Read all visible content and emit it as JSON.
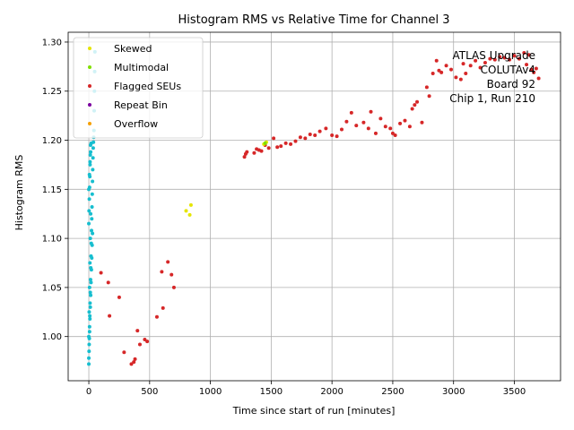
{
  "chart_data": {
    "type": "scatter",
    "title": "Histogram RMS vs Relative Time for Channel 3",
    "xlabel": "Time since start of run [minutes]",
    "ylabel": "Histogram RMS",
    "xlim": [
      -170,
      3880
    ],
    "ylim": [
      0.955,
      1.31
    ],
    "xticks": [
      0,
      500,
      1000,
      1500,
      2000,
      2500,
      3000,
      3500
    ],
    "yticks": [
      1.0,
      1.05,
      1.1,
      1.15,
      1.2,
      1.25,
      1.3
    ],
    "grid": true,
    "legend_position": "top-left",
    "annotation_lines": [
      "ATLAS Upgrade",
      "COLUTAv4",
      "Board 92",
      "Chip 1, Run 210"
    ],
    "annotation_position": "top-right",
    "series": [
      {
        "name": "Skewed",
        "color": "#e5e500",
        "x": [
          1440,
          1460,
          800,
          830,
          840
        ],
        "y": [
          1.196,
          1.198,
          1.128,
          1.124,
          1.134
        ]
      },
      {
        "name": "Multimodal",
        "color": "#80e000",
        "x": [
          1450
        ],
        "y": [
          1.197
        ]
      },
      {
        "name": "Flagged SEUs",
        "color": "#d62728",
        "x": [
          100,
          160,
          170,
          250,
          290,
          350,
          370,
          380,
          400,
          420,
          460,
          480,
          560,
          600,
          610,
          650,
          680,
          700,
          1280,
          1290,
          1300,
          1360,
          1380,
          1400,
          1420,
          1450,
          1480,
          1520,
          1550,
          1580,
          1620,
          1660,
          1700,
          1740,
          1780,
          1820,
          1860,
          1900,
          1950,
          2000,
          2040,
          2080,
          2120,
          2160,
          2200,
          2260,
          2300,
          2320,
          2360,
          2400,
          2440,
          2480,
          2500,
          2520,
          2560,
          2600,
          2640,
          2660,
          2680,
          2700,
          2740,
          2780,
          2800,
          2830,
          2860,
          2880,
          2900,
          2940,
          2980,
          3020,
          3060,
          3080,
          3100,
          3140,
          3180,
          3220,
          3260,
          3300,
          3340,
          3380,
          3420,
          3460,
          3500,
          3540,
          3580,
          3600,
          3620,
          3640,
          3660,
          3680,
          3700
        ],
        "y": [
          1.065,
          1.055,
          1.021,
          1.04,
          0.984,
          0.972,
          0.974,
          0.977,
          1.006,
          0.992,
          0.997,
          0.995,
          1.02,
          1.066,
          1.029,
          1.076,
          1.063,
          1.05,
          1.183,
          1.186,
          1.188,
          1.187,
          1.191,
          1.19,
          1.189,
          1.195,
          1.192,
          1.202,
          1.193,
          1.194,
          1.197,
          1.196,
          1.199,
          1.203,
          1.202,
          1.206,
          1.205,
          1.209,
          1.212,
          1.205,
          1.204,
          1.211,
          1.219,
          1.228,
          1.215,
          1.218,
          1.212,
          1.229,
          1.207,
          1.222,
          1.214,
          1.212,
          1.207,
          1.205,
          1.217,
          1.22,
          1.214,
          1.232,
          1.236,
          1.239,
          1.218,
          1.254,
          1.245,
          1.268,
          1.281,
          1.271,
          1.269,
          1.276,
          1.272,
          1.264,
          1.262,
          1.278,
          1.268,
          1.276,
          1.281,
          1.274,
          1.279,
          1.283,
          1.282,
          1.285,
          1.284,
          1.282,
          1.286,
          1.283,
          1.289,
          1.277,
          1.287,
          1.272,
          1.269,
          1.273,
          1.263
        ]
      },
      {
        "name": "Repeat Bin",
        "color": "#7b00a0",
        "x": [],
        "y": []
      },
      {
        "name": "Overflow",
        "color": "#f5a000",
        "x": [],
        "y": []
      },
      {
        "name": "",
        "color": "#17becf",
        "x": [
          0,
          2,
          4,
          6,
          8,
          10,
          12,
          14,
          16,
          18,
          20,
          22,
          24,
          26,
          28,
          30,
          32,
          34,
          36,
          38,
          40,
          42,
          44,
          46,
          48,
          50,
          0,
          3,
          6,
          9,
          12,
          15,
          18,
          21,
          24,
          27,
          30,
          0,
          2,
          4,
          6,
          8,
          10,
          12,
          14,
          0,
          3,
          6,
          9,
          12,
          15,
          0,
          5,
          10,
          15,
          20
        ],
        "y": [
          0.972,
          0.985,
          0.998,
          1.01,
          1.021,
          1.034,
          1.045,
          1.058,
          1.07,
          1.082,
          1.095,
          1.108,
          1.12,
          1.132,
          1.145,
          1.158,
          1.17,
          1.182,
          1.192,
          1.198,
          1.203,
          1.21,
          1.23,
          1.25,
          1.27,
          1.29,
          0.978,
          0.992,
          1.005,
          1.018,
          1.03,
          1.042,
          1.055,
          1.068,
          1.08,
          1.093,
          1.105,
          1.115,
          1.128,
          1.14,
          1.152,
          1.163,
          1.175,
          1.185,
          1.195,
          1.0,
          1.025,
          1.05,
          1.075,
          1.1,
          1.125,
          1.15,
          1.165,
          1.178,
          1.188,
          1.197
        ]
      }
    ]
  }
}
